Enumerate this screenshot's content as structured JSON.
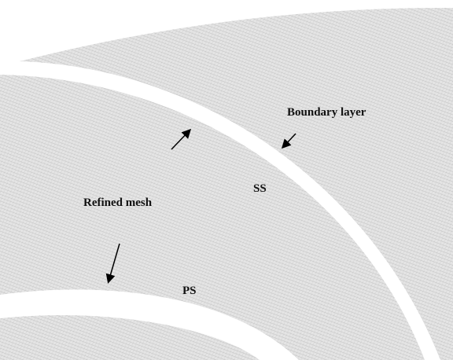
{
  "labels": {
    "boundary_layer": "Boundary layer",
    "suction_side": "SS",
    "refined_mesh": "Refined mesh",
    "pressure_side": "PS"
  }
}
